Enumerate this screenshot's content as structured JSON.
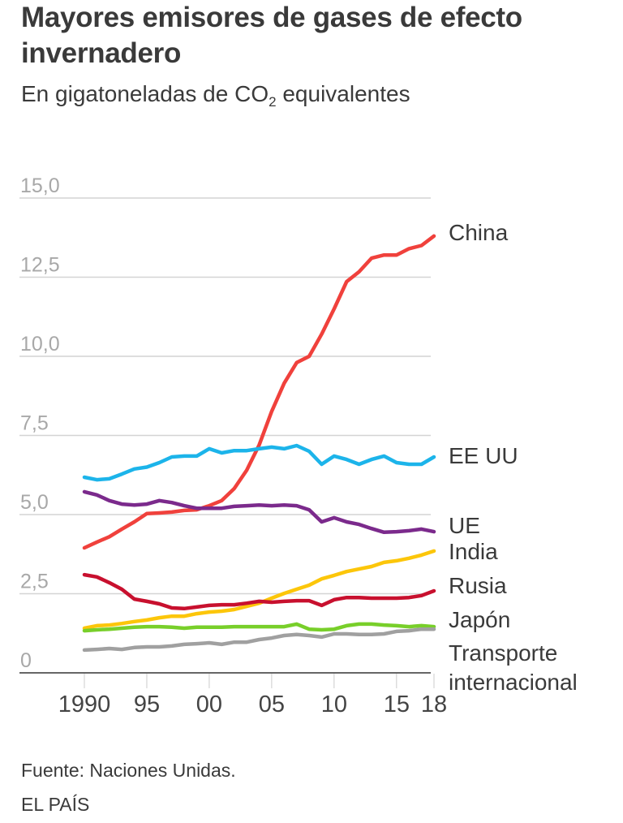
{
  "header": {
    "title": "Mayores emisores de gases de efecto invernadero",
    "subtitle_main": "En gigatoneladas de CO",
    "subtitle_sub": "2",
    "subtitle_tail": " equivalentes"
  },
  "footer": {
    "source": "Fuente: Naciones Unidas.",
    "brand": "EL PAÍS"
  },
  "chart_data": {
    "type": "line",
    "title": "Mayores emisores de gases de efecto invernadero",
    "subtitle": "En gigatoneladas de CO2 equivalentes",
    "xlabel": "",
    "ylabel": "",
    "x": [
      1990,
      1991,
      1992,
      1993,
      1994,
      1995,
      1996,
      1997,
      1998,
      1999,
      2000,
      2001,
      2002,
      2003,
      2004,
      2005,
      2006,
      2007,
      2008,
      2009,
      2010,
      2011,
      2012,
      2013,
      2014,
      2015,
      2016,
      2017,
      2018
    ],
    "xlim": [
      1990,
      2018
    ],
    "ylim": [
      0,
      15
    ],
    "grid": true,
    "legend": "direct-labels-right",
    "x_ticks": [
      {
        "value": 1990,
        "label": "1990"
      },
      {
        "value": 1995,
        "label": "95"
      },
      {
        "value": 2000,
        "label": "00"
      },
      {
        "value": 2005,
        "label": "05"
      },
      {
        "value": 2010,
        "label": "10"
      },
      {
        "value": 2015,
        "label": "15"
      },
      {
        "value": 2018,
        "label": "18"
      }
    ],
    "y_ticks": [
      {
        "value": 0,
        "label": "0"
      },
      {
        "value": 2.5,
        "label": "2,5"
      },
      {
        "value": 5,
        "label": "5,0"
      },
      {
        "value": 7.5,
        "label": "7,5"
      },
      {
        "value": 10,
        "label": "10,0"
      },
      {
        "value": 12.5,
        "label": "12,5"
      },
      {
        "value": 15,
        "label": "15,0"
      }
    ],
    "series": [
      {
        "name": "China",
        "color": "#f0413c",
        "label_lines": [
          "China"
        ],
        "values": [
          3.95,
          4.13,
          4.3,
          4.54,
          4.77,
          5.03,
          5.05,
          5.08,
          5.13,
          5.15,
          5.28,
          5.44,
          5.82,
          6.4,
          7.2,
          8.26,
          9.15,
          9.8,
          10.0,
          10.7,
          11.5,
          12.36,
          12.67,
          13.1,
          13.2,
          13.2,
          13.4,
          13.5,
          13.8
        ]
      },
      {
        "name": "EE UU",
        "color": "#1cb4ea",
        "label_lines": [
          "EE UU"
        ],
        "values": [
          6.18,
          6.1,
          6.13,
          6.28,
          6.44,
          6.5,
          6.64,
          6.82,
          6.85,
          6.85,
          7.08,
          6.95,
          7.02,
          7.02,
          7.08,
          7.13,
          7.08,
          7.18,
          7.0,
          6.59,
          6.85,
          6.74,
          6.59,
          6.74,
          6.85,
          6.64,
          6.59,
          6.59,
          6.82
        ]
      },
      {
        "name": "UE",
        "color": "#7b2a8c",
        "label_lines": [
          "UE"
        ],
        "values": [
          5.72,
          5.62,
          5.44,
          5.33,
          5.3,
          5.33,
          5.44,
          5.38,
          5.28,
          5.2,
          5.2,
          5.2,
          5.26,
          5.28,
          5.3,
          5.28,
          5.3,
          5.28,
          5.15,
          4.77,
          4.9,
          4.77,
          4.69,
          4.56,
          4.44,
          4.46,
          4.49,
          4.54,
          4.46
        ]
      },
      {
        "name": "India",
        "color": "#fcc60a",
        "label_lines": [
          "India"
        ],
        "values": [
          1.41,
          1.49,
          1.51,
          1.56,
          1.62,
          1.67,
          1.74,
          1.79,
          1.79,
          1.87,
          1.92,
          1.95,
          2.0,
          2.1,
          2.2,
          2.36,
          2.51,
          2.64,
          2.77,
          2.97,
          3.08,
          3.2,
          3.28,
          3.36,
          3.49,
          3.54,
          3.62,
          3.72,
          3.85
        ]
      },
      {
        "name": "Rusia",
        "color": "#c8102e",
        "label_lines": [
          "Rusia"
        ],
        "values": [
          3.1,
          3.03,
          2.85,
          2.64,
          2.33,
          2.26,
          2.18,
          2.05,
          2.03,
          2.08,
          2.13,
          2.15,
          2.15,
          2.2,
          2.26,
          2.23,
          2.26,
          2.28,
          2.28,
          2.13,
          2.31,
          2.38,
          2.38,
          2.36,
          2.36,
          2.36,
          2.38,
          2.44,
          2.59
        ]
      },
      {
        "name": "Japón",
        "color": "#78cf2a",
        "label_lines": [
          "Japón"
        ],
        "values": [
          1.33,
          1.36,
          1.38,
          1.41,
          1.44,
          1.46,
          1.46,
          1.44,
          1.41,
          1.44,
          1.44,
          1.44,
          1.46,
          1.46,
          1.46,
          1.46,
          1.46,
          1.54,
          1.38,
          1.36,
          1.38,
          1.49,
          1.54,
          1.54,
          1.51,
          1.49,
          1.46,
          1.49,
          1.46
        ]
      },
      {
        "name": "Transporte internacional",
        "color": "#a0a0a0",
        "label_lines": [
          "Transporte",
          "internacional"
        ],
        "values": [
          0.72,
          0.74,
          0.77,
          0.74,
          0.8,
          0.82,
          0.82,
          0.85,
          0.9,
          0.92,
          0.95,
          0.9,
          0.97,
          0.97,
          1.05,
          1.1,
          1.18,
          1.21,
          1.18,
          1.13,
          1.23,
          1.23,
          1.21,
          1.21,
          1.23,
          1.31,
          1.33,
          1.38,
          1.38
        ]
      }
    ]
  }
}
